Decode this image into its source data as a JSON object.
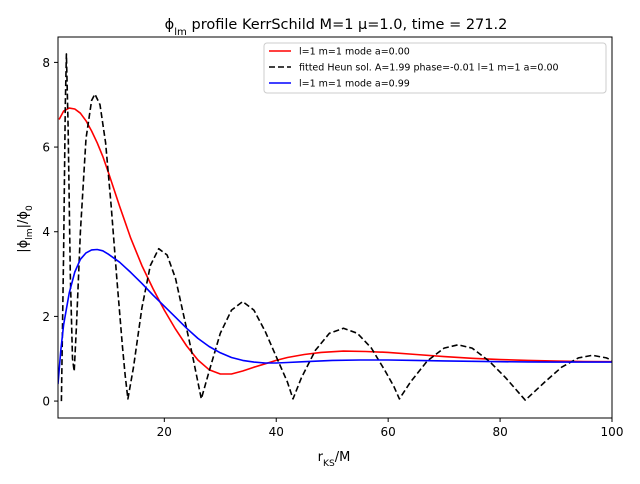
{
  "chart_data": {
    "type": "line",
    "title": "ϕ_lm profile KerrSchild M=1 μ=1.0, time = 271.2",
    "xlabel": "r_KS/M",
    "ylabel": "|ϕ_lm|/ϕ_0",
    "xlim": [
      1.0,
      100.0
    ],
    "ylim": [
      -0.4,
      8.6
    ],
    "x_ticks": [
      20,
      40,
      60,
      80,
      100
    ],
    "y_ticks": [
      0,
      2,
      4,
      6,
      8
    ],
    "grid": false,
    "legend_position": "top-right",
    "series": [
      {
        "name": "l=1 m=1 mode a=0.00",
        "color": "#ff0000",
        "style": "solid",
        "points": [
          [
            1.2,
            6.65
          ],
          [
            2,
            6.85
          ],
          [
            3,
            6.92
          ],
          [
            4,
            6.9
          ],
          [
            5,
            6.8
          ],
          [
            6,
            6.62
          ],
          [
            7,
            6.38
          ],
          [
            8,
            6.1
          ],
          [
            9,
            5.78
          ],
          [
            10,
            5.4
          ],
          [
            12,
            4.6
          ],
          [
            14,
            3.85
          ],
          [
            16,
            3.2
          ],
          [
            18,
            2.65
          ],
          [
            20,
            2.15
          ],
          [
            22,
            1.7
          ],
          [
            24,
            1.3
          ],
          [
            26,
            0.97
          ],
          [
            28,
            0.74
          ],
          [
            30,
            0.64
          ],
          [
            32,
            0.64
          ],
          [
            34,
            0.71
          ],
          [
            36,
            0.8
          ],
          [
            38,
            0.88
          ],
          [
            40,
            0.96
          ],
          [
            42,
            1.03
          ],
          [
            45,
            1.1
          ],
          [
            48,
            1.15
          ],
          [
            52,
            1.18
          ],
          [
            56,
            1.17
          ],
          [
            60,
            1.15
          ],
          [
            65,
            1.1
          ],
          [
            70,
            1.05
          ],
          [
            75,
            1.01
          ],
          [
            80,
            0.98
          ],
          [
            85,
            0.96
          ],
          [
            90,
            0.945
          ],
          [
            95,
            0.935
          ],
          [
            100,
            0.93
          ]
        ]
      },
      {
        "name": "fitted Heun sol. A=1.99 phase=-0.01 l=1 m=1 a=0.00",
        "color": "#000000",
        "style": "dashed",
        "points": [
          [
            1.6,
            0.0
          ],
          [
            2.0,
            3.5
          ],
          [
            2.3,
            7.0
          ],
          [
            2.5,
            8.2
          ],
          [
            2.8,
            6.5
          ],
          [
            3.2,
            3.0
          ],
          [
            3.6,
            1.0
          ],
          [
            3.9,
            0.7
          ],
          [
            4.3,
            1.8
          ],
          [
            5,
            4.0
          ],
          [
            6,
            6.2
          ],
          [
            7,
            7.1
          ],
          [
            7.6,
            7.25
          ],
          [
            8.5,
            7.0
          ],
          [
            9.5,
            6.1
          ],
          [
            10.5,
            4.6
          ],
          [
            11.5,
            2.9
          ],
          [
            12.5,
            1.3
          ],
          [
            13.0,
            0.6
          ],
          [
            13.5,
            0.05
          ],
          [
            14.5,
            0.8
          ],
          [
            16,
            2.2
          ],
          [
            17.5,
            3.2
          ],
          [
            19,
            3.6
          ],
          [
            20.5,
            3.45
          ],
          [
            22,
            2.9
          ],
          [
            23.5,
            2.0
          ],
          [
            25,
            1.1
          ],
          [
            26.6,
            0.05
          ],
          [
            28,
            0.7
          ],
          [
            30,
            1.6
          ],
          [
            32,
            2.15
          ],
          [
            34,
            2.35
          ],
          [
            36,
            2.15
          ],
          [
            38,
            1.65
          ],
          [
            40,
            1.05
          ],
          [
            42,
            0.45
          ],
          [
            43,
            0.05
          ],
          [
            44.5,
            0.55
          ],
          [
            47,
            1.2
          ],
          [
            49.5,
            1.6
          ],
          [
            52,
            1.72
          ],
          [
            54.5,
            1.6
          ],
          [
            57,
            1.25
          ],
          [
            59.5,
            0.7
          ],
          [
            61,
            0.35
          ],
          [
            62,
            0.05
          ],
          [
            64,
            0.45
          ],
          [
            67,
            0.95
          ],
          [
            70,
            1.25
          ],
          [
            72.5,
            1.33
          ],
          [
            75,
            1.25
          ],
          [
            78,
            0.95
          ],
          [
            81,
            0.55
          ],
          [
            84.5,
            0.02
          ],
          [
            88,
            0.45
          ],
          [
            91,
            0.8
          ],
          [
            94,
            1.02
          ],
          [
            96.5,
            1.08
          ],
          [
            99,
            1.02
          ],
          [
            100,
            0.96
          ]
        ]
      },
      {
        "name": "l=1 m=1 mode a=0.99",
        "color": "#0000ff",
        "style": "solid",
        "points": [
          [
            1.0,
            0.4
          ],
          [
            1.5,
            1.2
          ],
          [
            2,
            1.8
          ],
          [
            3,
            2.55
          ],
          [
            4,
            3.05
          ],
          [
            5,
            3.35
          ],
          [
            6,
            3.5
          ],
          [
            7,
            3.57
          ],
          [
            8,
            3.58
          ],
          [
            9,
            3.55
          ],
          [
            10,
            3.47
          ],
          [
            12,
            3.28
          ],
          [
            14,
            3.04
          ],
          [
            16,
            2.78
          ],
          [
            18,
            2.5
          ],
          [
            20,
            2.24
          ],
          [
            22,
            1.98
          ],
          [
            24,
            1.72
          ],
          [
            26,
            1.48
          ],
          [
            28,
            1.29
          ],
          [
            30,
            1.14
          ],
          [
            32,
            1.03
          ],
          [
            34,
            0.96
          ],
          [
            36,
            0.92
          ],
          [
            38,
            0.9
          ],
          [
            40,
            0.9
          ],
          [
            42,
            0.91
          ],
          [
            45,
            0.93
          ],
          [
            50,
            0.96
          ],
          [
            55,
            0.97
          ],
          [
            60,
            0.97
          ],
          [
            65,
            0.96
          ],
          [
            70,
            0.95
          ],
          [
            75,
            0.94
          ],
          [
            80,
            0.93
          ],
          [
            85,
            0.925
          ],
          [
            90,
            0.92
          ],
          [
            95,
            0.92
          ],
          [
            100,
            0.92
          ]
        ]
      }
    ]
  }
}
